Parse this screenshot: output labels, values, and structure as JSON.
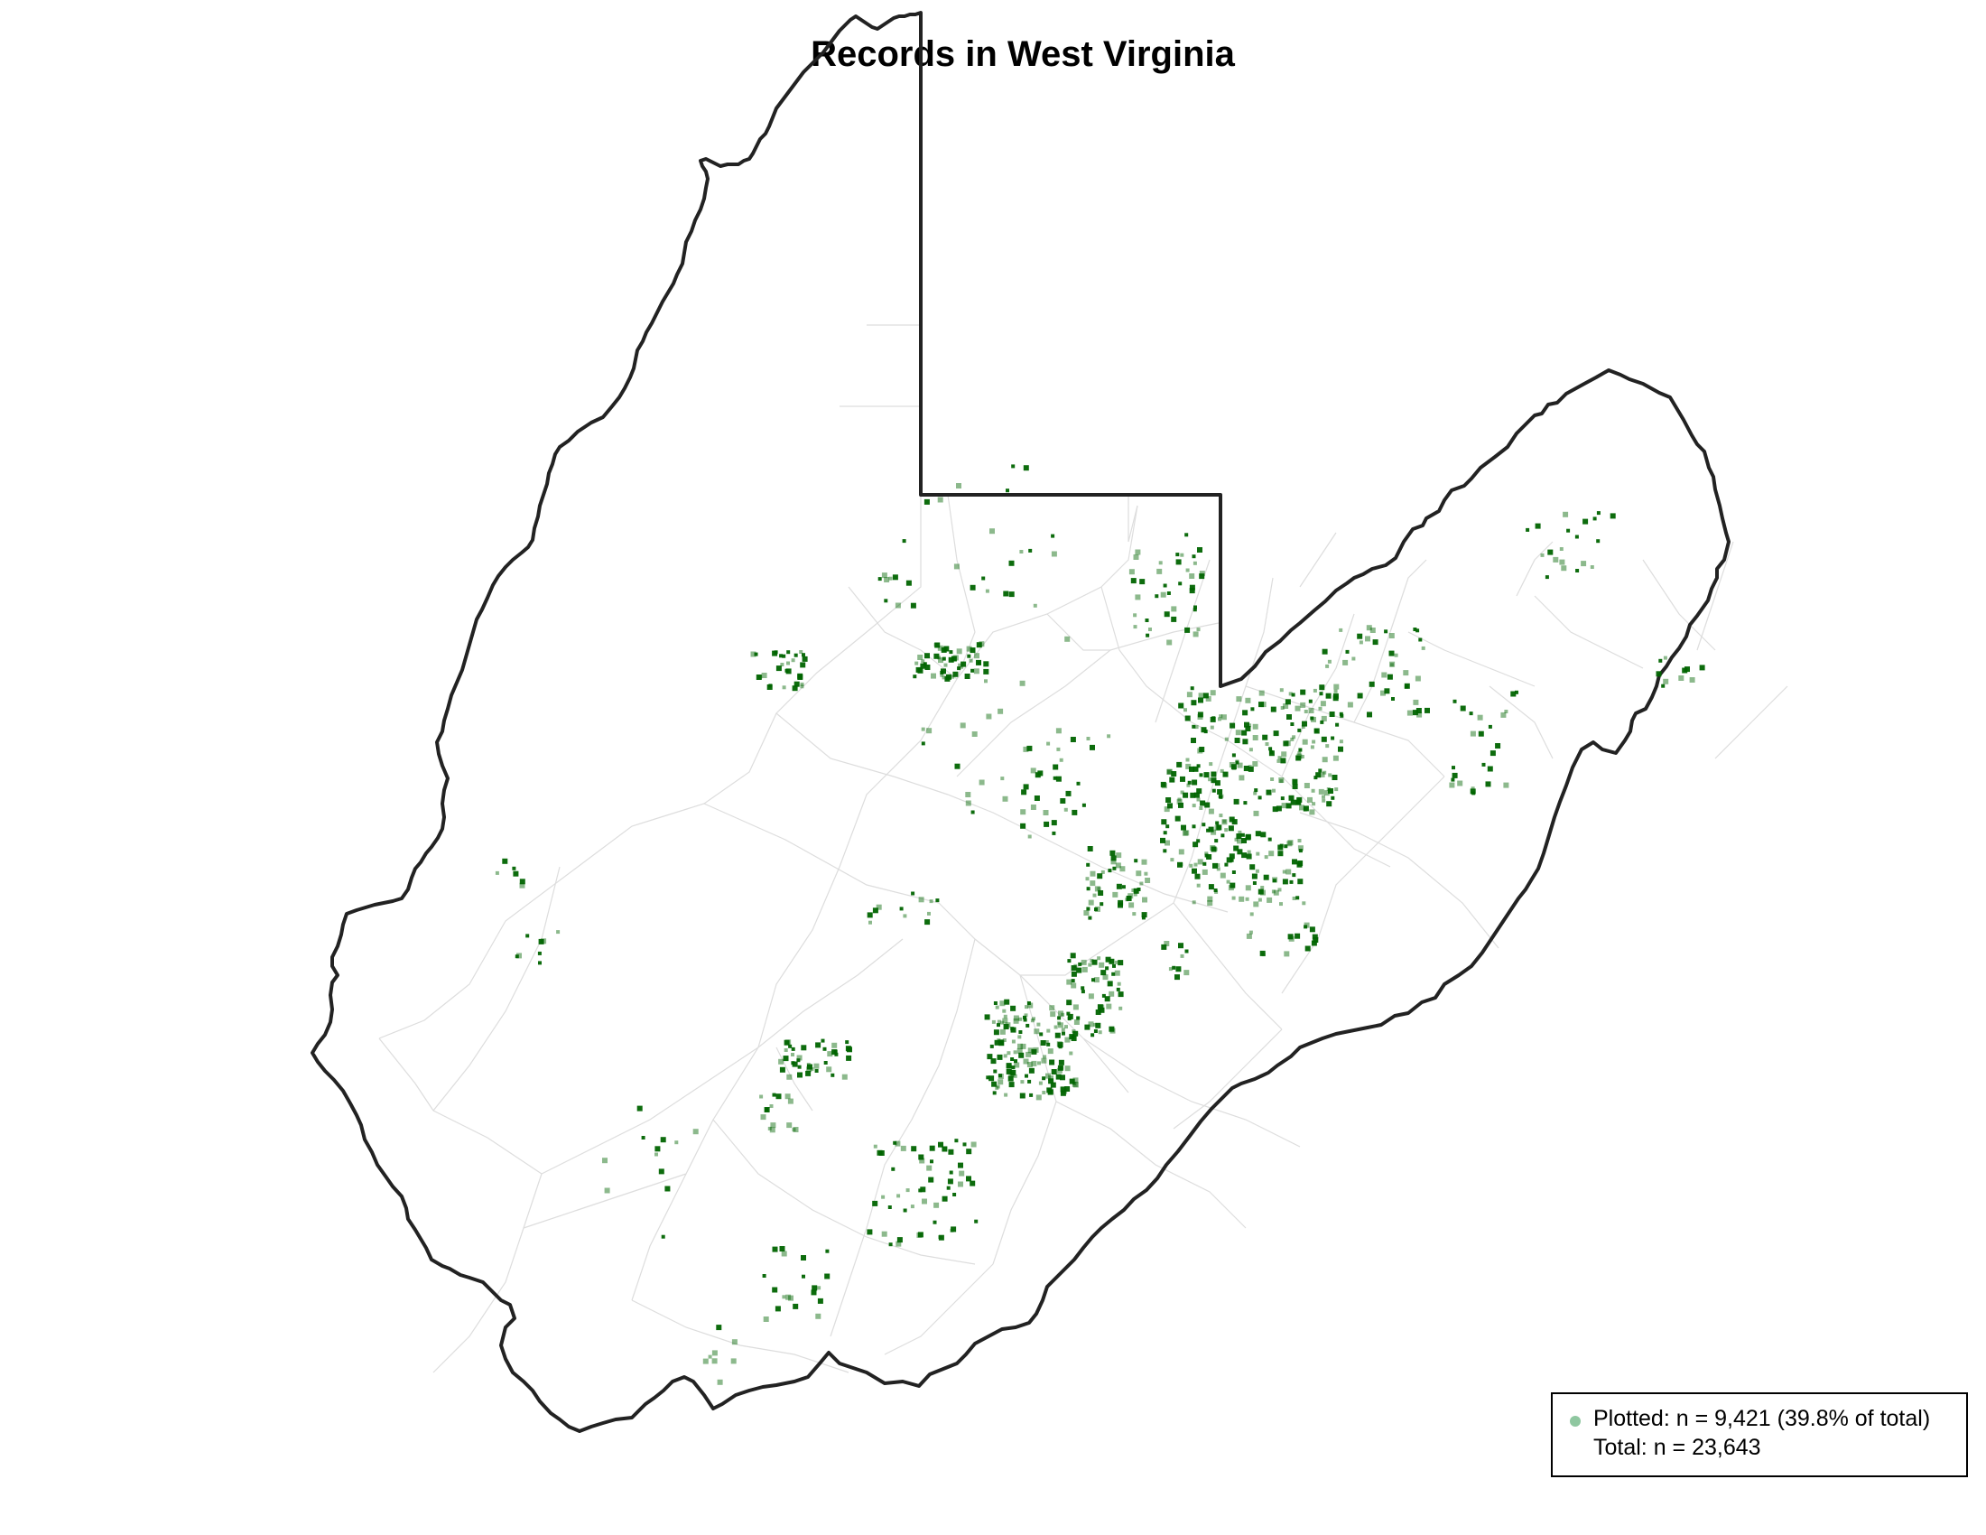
{
  "map": {
    "title": "Records in West Virginia",
    "state_outline_color": "#222222",
    "county_line_color": "#dddddd",
    "point_color": "#006400",
    "legend": {
      "plotted": "Plotted: n = 9,421 (39.8% of total)",
      "total": "Total: n = 23,643",
      "key_color": "#8fc7a0"
    }
  }
}
